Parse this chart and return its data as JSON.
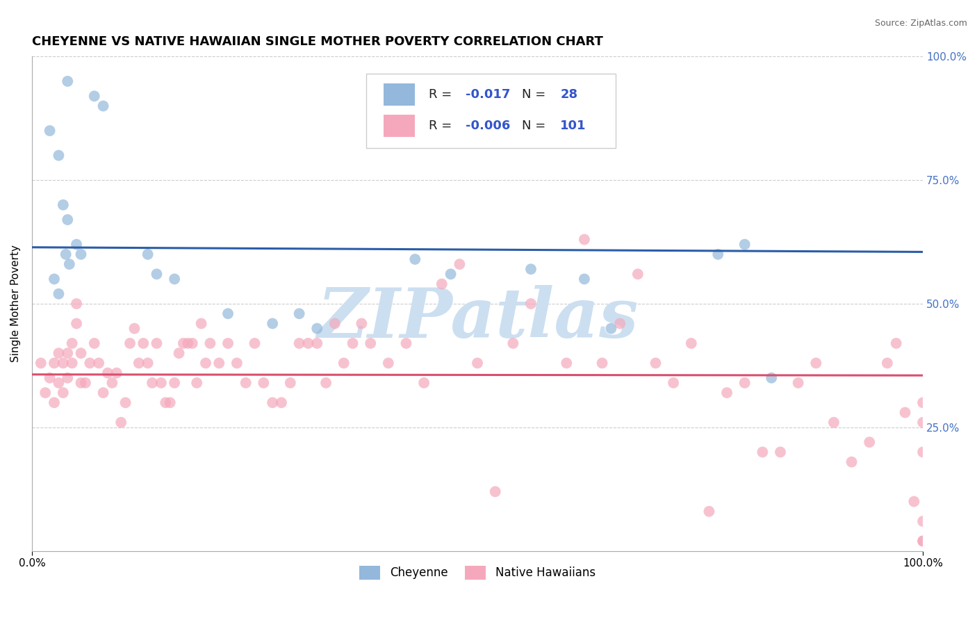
{
  "title": "CHEYENNE VS NATIVE HAWAIIAN SINGLE MOTHER POVERTY CORRELATION CHART",
  "source": "Source: ZipAtlas.com",
  "ylabel": "Single Mother Poverty",
  "ytick_labels": [
    "100.0%",
    "75.0%",
    "50.0%",
    "25.0%"
  ],
  "ytick_values": [
    1.0,
    0.75,
    0.5,
    0.25
  ],
  "xtick_labels": [
    "0.0%",
    "100.0%"
  ],
  "xtick_values": [
    0.0,
    1.0
  ],
  "cheyenne_color": "#93b8db",
  "native_hawaiian_color": "#f5a8bc",
  "cheyenne_line_color": "#2b5da8",
  "native_hawaiian_line_color": "#d94f6e",
  "background_color": "#ffffff",
  "grid_color": "#cccccc",
  "cheyenne_R": -0.017,
  "cheyenne_N": 28,
  "native_hawaiian_R": -0.006,
  "native_hawaiian_N": 101,
  "cheyenne_x": [
    0.04,
    0.07,
    0.08,
    0.02,
    0.03,
    0.035,
    0.04,
    0.038,
    0.042,
    0.05,
    0.055,
    0.025,
    0.03,
    0.13,
    0.14,
    0.16,
    0.22,
    0.27,
    0.3,
    0.32,
    0.43,
    0.47,
    0.56,
    0.62,
    0.65,
    0.77,
    0.8,
    0.83
  ],
  "cheyenne_y": [
    0.95,
    0.92,
    0.9,
    0.85,
    0.8,
    0.7,
    0.67,
    0.6,
    0.58,
    0.62,
    0.6,
    0.55,
    0.52,
    0.6,
    0.56,
    0.55,
    0.48,
    0.46,
    0.48,
    0.45,
    0.59,
    0.56,
    0.57,
    0.55,
    0.45,
    0.6,
    0.62,
    0.35
  ],
  "native_hawaiian_x": [
    0.01,
    0.015,
    0.02,
    0.025,
    0.025,
    0.03,
    0.03,
    0.035,
    0.035,
    0.04,
    0.04,
    0.045,
    0.045,
    0.05,
    0.05,
    0.055,
    0.055,
    0.06,
    0.065,
    0.07,
    0.075,
    0.08,
    0.085,
    0.09,
    0.095,
    0.1,
    0.105,
    0.11,
    0.115,
    0.12,
    0.125,
    0.13,
    0.135,
    0.14,
    0.145,
    0.15,
    0.155,
    0.16,
    0.165,
    0.17,
    0.175,
    0.18,
    0.185,
    0.19,
    0.195,
    0.2,
    0.21,
    0.22,
    0.23,
    0.24,
    0.25,
    0.26,
    0.27,
    0.28,
    0.29,
    0.3,
    0.31,
    0.32,
    0.33,
    0.34,
    0.35,
    0.36,
    0.37,
    0.38,
    0.4,
    0.42,
    0.44,
    0.46,
    0.48,
    0.5,
    0.52,
    0.54,
    0.56,
    0.6,
    0.62,
    0.64,
    0.66,
    0.68,
    0.7,
    0.72,
    0.74,
    0.76,
    0.78,
    0.8,
    0.82,
    0.84,
    0.86,
    0.88,
    0.9,
    0.92,
    0.94,
    0.96,
    0.97,
    0.98,
    0.99,
    1.0,
    1.0,
    1.0,
    1.0,
    1.0,
    1.0
  ],
  "native_hawaiian_y": [
    0.38,
    0.32,
    0.35,
    0.38,
    0.3,
    0.4,
    0.34,
    0.38,
    0.32,
    0.4,
    0.35,
    0.42,
    0.38,
    0.5,
    0.46,
    0.34,
    0.4,
    0.34,
    0.38,
    0.42,
    0.38,
    0.32,
    0.36,
    0.34,
    0.36,
    0.26,
    0.3,
    0.42,
    0.45,
    0.38,
    0.42,
    0.38,
    0.34,
    0.42,
    0.34,
    0.3,
    0.3,
    0.34,
    0.4,
    0.42,
    0.42,
    0.42,
    0.34,
    0.46,
    0.38,
    0.42,
    0.38,
    0.42,
    0.38,
    0.34,
    0.42,
    0.34,
    0.3,
    0.3,
    0.34,
    0.42,
    0.42,
    0.42,
    0.34,
    0.46,
    0.38,
    0.42,
    0.46,
    0.42,
    0.38,
    0.42,
    0.34,
    0.54,
    0.58,
    0.38,
    0.12,
    0.42,
    0.5,
    0.38,
    0.63,
    0.38,
    0.46,
    0.56,
    0.38,
    0.34,
    0.42,
    0.08,
    0.32,
    0.34,
    0.2,
    0.2,
    0.34,
    0.38,
    0.26,
    0.18,
    0.22,
    0.38,
    0.42,
    0.28,
    0.1,
    0.06,
    0.2,
    0.02,
    0.3,
    0.26,
    0.02
  ],
  "watermark_text": "ZIPatlas",
  "watermark_color": "#ccdff0",
  "title_fontsize": 13,
  "axis_label_fontsize": 11,
  "tick_fontsize": 11,
  "source_text": "Source: ZipAtlas.com",
  "legend_label_cheyenne": "Cheyenne",
  "legend_label_nh": "Native Hawaiians"
}
